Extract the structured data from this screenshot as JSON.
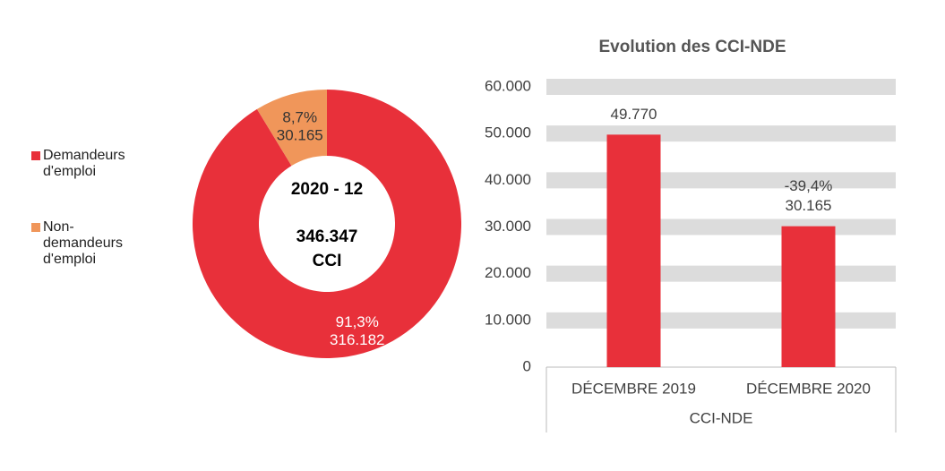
{
  "chart_data": [
    {
      "type": "donut",
      "categories": [
        "Demandeurs d'emploi",
        "Non-demandeurs d'emploi"
      ],
      "values": [
        316182,
        30165
      ],
      "value_labels": [
        "316.182",
        "30.165"
      ],
      "shares": [
        91.3,
        8.7
      ],
      "share_labels": [
        "91,3%",
        "8,7%"
      ],
      "colors": [
        "#e8303a",
        "#f0965a"
      ],
      "center_text": [
        "2020 - 12",
        "346.347",
        "CCI"
      ],
      "legend": "left"
    },
    {
      "type": "bar",
      "title": "Evolution des CCI-NDE",
      "categories": [
        "DÉCEMBRE 2019",
        "DÉCEMBRE 2020"
      ],
      "group_label": "CCI-NDE",
      "values": [
        49770,
        30165
      ],
      "value_labels": [
        "49.770",
        "30.165"
      ],
      "annotation": "-39,4%",
      "color": "#e8303a",
      "ylim": [
        0,
        60000
      ],
      "yticks": [
        {
          "value": 0,
          "label": "0"
        },
        {
          "value": 10000,
          "label": "10.000"
        },
        {
          "value": 20000,
          "label": "20.000"
        },
        {
          "value": 30000,
          "label": "30.000"
        },
        {
          "value": 40000,
          "label": "40.000"
        },
        {
          "value": 50000,
          "label": "50.000"
        },
        {
          "value": 60000,
          "label": "60.000"
        }
      ],
      "grid": true
    }
  ]
}
